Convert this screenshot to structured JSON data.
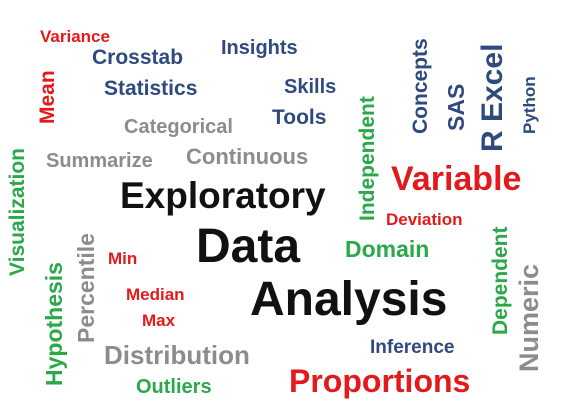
{
  "colors": {
    "red": "#e31a1c",
    "blue": "#2e4a7e",
    "gray": "#8c8c8c",
    "green": "#2aa84a",
    "black": "#111111",
    "background": "#ffffff"
  },
  "words": [
    {
      "key": "variance",
      "text": "Variance",
      "color": "#e31a1c"
    },
    {
      "key": "crosstab",
      "text": "Crosstab",
      "color": "#2e4a7e"
    },
    {
      "key": "insights",
      "text": "Insights",
      "color": "#2e4a7e"
    },
    {
      "key": "statistics",
      "text": "Statistics",
      "color": "#2e4a7e"
    },
    {
      "key": "skills",
      "text": "Skills",
      "color": "#2e4a7e"
    },
    {
      "key": "tools",
      "text": "Tools",
      "color": "#2e4a7e"
    },
    {
      "key": "categorical",
      "text": "Categorical",
      "color": "#8c8c8c"
    },
    {
      "key": "summarize",
      "text": "Summarize",
      "color": "#8c8c8c"
    },
    {
      "key": "continuous",
      "text": "Continuous",
      "color": "#8c8c8c"
    },
    {
      "key": "exploratory",
      "text": "Exploratory",
      "color": "#111111"
    },
    {
      "key": "variable",
      "text": "Variable",
      "color": "#e31a1c"
    },
    {
      "key": "deviation",
      "text": "Deviation",
      "color": "#e31a1c"
    },
    {
      "key": "domain",
      "text": "Domain",
      "color": "#2aa84a"
    },
    {
      "key": "data",
      "text": "Data",
      "color": "#111111"
    },
    {
      "key": "min",
      "text": "Min",
      "color": "#e31a1c"
    },
    {
      "key": "median",
      "text": "Median",
      "color": "#e31a1c"
    },
    {
      "key": "analysis",
      "text": "Analysis",
      "color": "#111111"
    },
    {
      "key": "max",
      "text": "Max",
      "color": "#e31a1c"
    },
    {
      "key": "inference",
      "text": "Inference",
      "color": "#2e4a7e"
    },
    {
      "key": "distribution",
      "text": "Distribution",
      "color": "#8c8c8c"
    },
    {
      "key": "outliers",
      "text": "Outliers",
      "color": "#2aa84a"
    },
    {
      "key": "proportions",
      "text": "Proportions",
      "color": "#e31a1c"
    },
    {
      "key": "mean",
      "text": "Mean",
      "color": "#e31a1c"
    },
    {
      "key": "visualization",
      "text": "Visualization",
      "color": "#2aa84a"
    },
    {
      "key": "hypothesis",
      "text": "Hypothesis",
      "color": "#2aa84a"
    },
    {
      "key": "percentile",
      "text": "Percentile",
      "color": "#8c8c8c"
    },
    {
      "key": "independent",
      "text": "Independent",
      "color": "#2aa84a"
    },
    {
      "key": "concepts",
      "text": "Concepts",
      "color": "#2e4a7e"
    },
    {
      "key": "sas",
      "text": "SAS",
      "color": "#2e4a7e"
    },
    {
      "key": "rexcel",
      "text": "R Excel",
      "color": "#2e4a7e"
    },
    {
      "key": "python",
      "text": "Python",
      "color": "#2e4a7e"
    },
    {
      "key": "dependent",
      "text": "Dependent",
      "color": "#2aa84a"
    },
    {
      "key": "numeric",
      "text": "Numeric",
      "color": "#8c8c8c"
    }
  ]
}
